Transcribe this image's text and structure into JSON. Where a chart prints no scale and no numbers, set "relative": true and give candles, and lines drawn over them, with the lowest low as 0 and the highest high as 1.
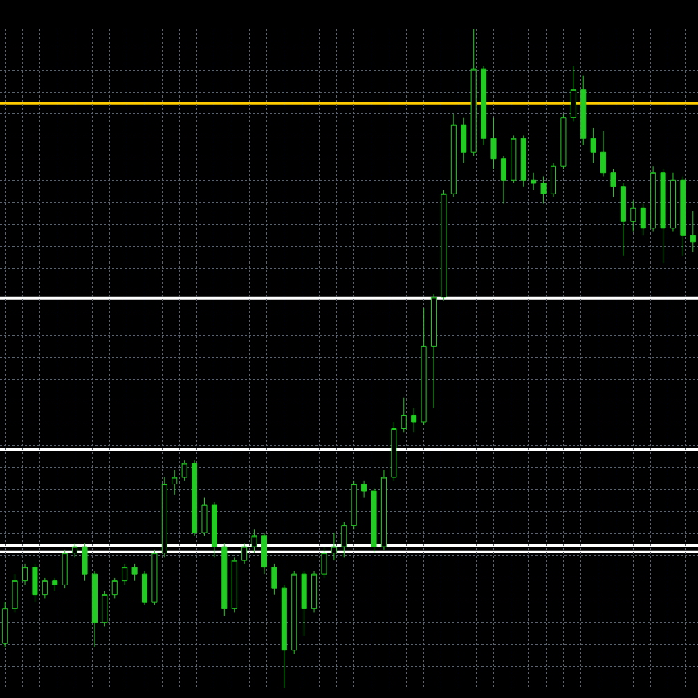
{
  "chart_data": {
    "type": "candlestick",
    "relative": true,
    "grid": true,
    "color": "#22cc22",
    "categories": [
      null,
      null,
      null,
      null,
      null,
      null,
      null,
      null,
      null,
      null,
      null,
      null,
      null,
      null,
      null,
      null,
      null,
      null,
      null,
      null,
      null,
      null,
      null,
      null,
      null,
      null,
      null,
      null,
      null,
      null,
      null,
      null,
      null,
      null,
      null,
      null,
      null,
      null,
      null,
      null,
      null,
      null,
      null,
      null,
      null,
      null,
      null,
      null,
      null,
      null,
      null,
      null,
      null,
      null,
      null,
      null,
      null,
      null,
      null,
      null,
      null,
      null,
      null,
      null,
      null,
      null,
      null,
      null,
      null,
      null
    ],
    "ohlc": [
      [
        0.068,
        0.131,
        0.063,
        0.121
      ],
      [
        0.121,
        0.173,
        0.115,
        0.163
      ],
      [
        0.163,
        0.189,
        0.157,
        0.184
      ],
      [
        0.184,
        0.189,
        0.131,
        0.142
      ],
      [
        0.142,
        0.168,
        0.136,
        0.163
      ],
      [
        0.163,
        0.168,
        0.147,
        0.157
      ],
      [
        0.157,
        0.21,
        0.152,
        0.205
      ],
      [
        0.205,
        0.22,
        0.199,
        0.215
      ],
      [
        0.215,
        0.22,
        0.163,
        0.173
      ],
      [
        0.173,
        0.178,
        0.063,
        0.1
      ],
      [
        0.1,
        0.147,
        0.094,
        0.142
      ],
      [
        0.142,
        0.168,
        0.136,
        0.163
      ],
      [
        0.163,
        0.189,
        0.157,
        0.184
      ],
      [
        0.184,
        0.189,
        0.163,
        0.173
      ],
      [
        0.173,
        0.178,
        0.126,
        0.131
      ],
      [
        0.131,
        0.21,
        0.126,
        0.205
      ],
      [
        0.205,
        0.32,
        0.199,
        0.31
      ],
      [
        0.31,
        0.331,
        0.294,
        0.32
      ],
      [
        0.32,
        0.346,
        0.315,
        0.341
      ],
      [
        0.341,
        0.346,
        0.231,
        0.236
      ],
      [
        0.236,
        0.289,
        0.231,
        0.278
      ],
      [
        0.278,
        0.283,
        0.199,
        0.215
      ],
      [
        0.215,
        0.22,
        0.11,
        0.121
      ],
      [
        0.121,
        0.199,
        0.115,
        0.194
      ],
      [
        0.194,
        0.22,
        0.189,
        0.215
      ],
      [
        0.215,
        0.241,
        0.205,
        0.231
      ],
      [
        0.231,
        0.236,
        0.173,
        0.184
      ],
      [
        0.184,
        0.189,
        0.142,
        0.152
      ],
      [
        0.152,
        0.157,
        0,
        0.058
      ],
      [
        0.058,
        0.178,
        0.052,
        0.173
      ],
      [
        0.173,
        0.178,
        0.079,
        0.121
      ],
      [
        0.121,
        0.178,
        0.115,
        0.173
      ],
      [
        0.173,
        0.215,
        0.168,
        0.205
      ],
      [
        0.205,
        0.236,
        0.194,
        0.215
      ],
      [
        0.215,
        0.252,
        0.199,
        0.247
      ],
      [
        0.247,
        0.315,
        0.241,
        0.31
      ],
      [
        0.31,
        0.315,
        0.289,
        0.299
      ],
      [
        0.299,
        0.304,
        0.205,
        0.215
      ],
      [
        0.215,
        0.331,
        0.21,
        0.32
      ],
      [
        0.32,
        0.404,
        0.315,
        0.394
      ],
      [
        0.394,
        0.441,
        0.388,
        0.414
      ],
      [
        0.414,
        0.425,
        0.388,
        0.404
      ],
      [
        0.404,
        0.577,
        0.399,
        0.519
      ],
      [
        0.519,
        0.598,
        0.425,
        0.593
      ],
      [
        0.593,
        0.756,
        0.588,
        0.75
      ],
      [
        0.75,
        0.871,
        0.745,
        0.855
      ],
      [
        0.855,
        0.866,
        0.797,
        0.813
      ],
      [
        0.813,
        1,
        0.808,
        0.939
      ],
      [
        0.939,
        0.944,
        0.824,
        0.834
      ],
      [
        0.834,
        0.866,
        0.787,
        0.803
      ],
      [
        0.803,
        0.808,
        0.735,
        0.771
      ],
      [
        0.771,
        0.839,
        0.766,
        0.834
      ],
      [
        0.834,
        0.839,
        0.761,
        0.771
      ],
      [
        0.771,
        0.782,
        0.756,
        0.766
      ],
      [
        0.766,
        0.776,
        0.735,
        0.75
      ],
      [
        0.75,
        0.797,
        0.745,
        0.792
      ],
      [
        0.792,
        0.871,
        0.787,
        0.866
      ],
      [
        0.866,
        0.944,
        0.86,
        0.908
      ],
      [
        0.908,
        0.929,
        0.824,
        0.834
      ],
      [
        0.834,
        0.85,
        0.797,
        0.813
      ],
      [
        0.813,
        0.845,
        0.776,
        0.782
      ],
      [
        0.782,
        0.787,
        0.745,
        0.761
      ],
      [
        0.761,
        0.766,
        0.656,
        0.708
      ],
      [
        0.708,
        0.74,
        0.693,
        0.729
      ],
      [
        0.729,
        0.735,
        0.687,
        0.698
      ],
      [
        0.698,
        0.792,
        0.693,
        0.782
      ],
      [
        0.782,
        0.787,
        0.645,
        0.698
      ],
      [
        0.698,
        0.782,
        0.693,
        0.771
      ],
      [
        0.771,
        0.776,
        0.656,
        0.687
      ],
      [
        0.687,
        0.724,
        0.661,
        0.677
      ]
    ],
    "ref_lines": [
      {
        "axis": "y",
        "value": 0.887,
        "color": "#ffcc00"
      },
      {
        "axis": "y",
        "value": 0.592,
        "color": "#ffffff"
      },
      {
        "axis": "y",
        "value": 0.362,
        "color": "#ffffff"
      },
      {
        "axis": "y",
        "value": 0.217,
        "color": "#ffffff"
      },
      {
        "axis": "y",
        "value": 0.207,
        "color": "#ffffff"
      }
    ]
  }
}
